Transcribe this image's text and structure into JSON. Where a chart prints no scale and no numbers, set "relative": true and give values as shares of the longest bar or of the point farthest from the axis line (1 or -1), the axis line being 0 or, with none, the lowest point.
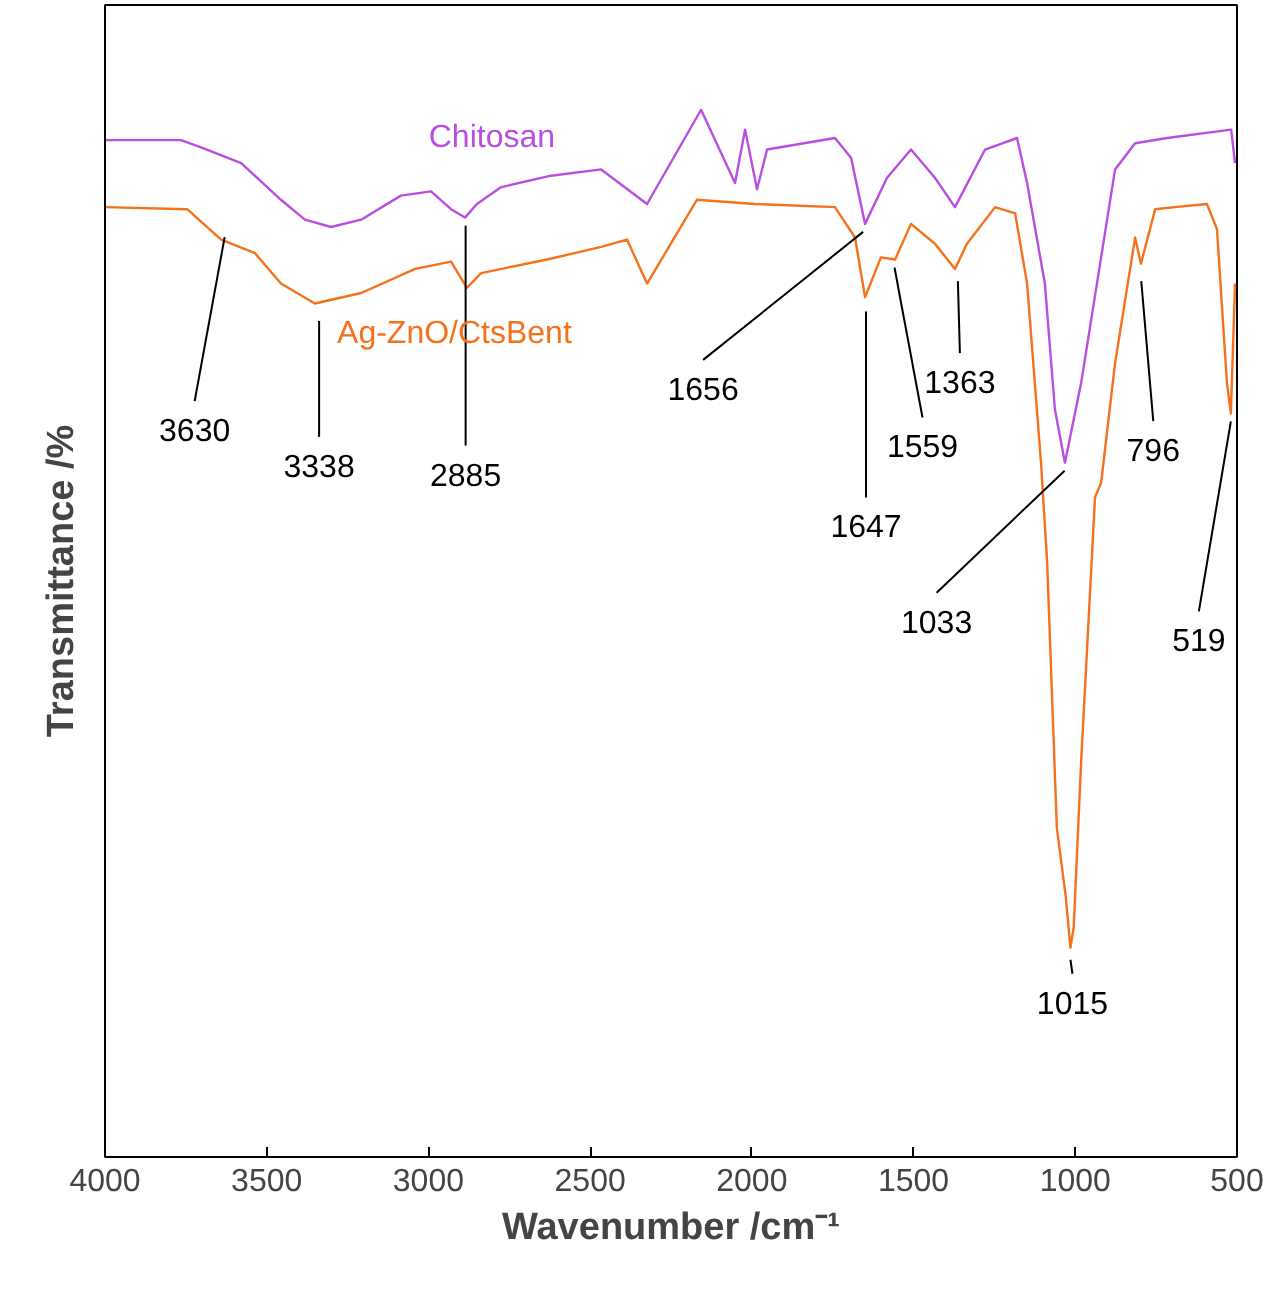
{
  "chart_data": {
    "type": "line",
    "relative": true,
    "xlabel": "Wavenumber /cm⁻¹",
    "ylabel": "Transmittance /%",
    "xlim": [
      4000,
      500
    ],
    "xticks": [
      4000,
      3500,
      3000,
      2500,
      2000,
      1500,
      1000,
      500
    ],
    "grid": false,
    "marker": "none",
    "line_style": "solid",
    "series": [
      {
        "name": "Chitosan",
        "color": "#b84fe0",
        "x": [
          4000,
          3765,
          3703,
          3579,
          3456,
          3382,
          3301,
          3208,
          3085,
          2992,
          2930,
          2887,
          2850,
          2776,
          2621,
          2466,
          2324,
          2157,
          2052,
          2021,
          1984,
          1953,
          1743,
          1693,
          1650,
          1582,
          1508,
          1434,
          1372,
          1279,
          1180,
          1149,
          1094,
          1063,
          1032,
          982,
          933,
          877,
          815,
          716,
          518,
          506
        ],
        "values": [
          0.971,
          0.971,
          0.964,
          0.949,
          0.914,
          0.895,
          0.888,
          0.895,
          0.918,
          0.922,
          0.905,
          0.897,
          0.91,
          0.926,
          0.937,
          0.943,
          0.91,
          1.0,
          0.93,
          0.981,
          0.924,
          0.962,
          0.973,
          0.954,
          0.891,
          0.935,
          0.962,
          0.935,
          0.907,
          0.962,
          0.973,
          0.93,
          0.834,
          0.714,
          0.663,
          0.739,
          0.834,
          0.943,
          0.968,
          0.973,
          0.981,
          0.949
        ]
      },
      {
        "name": "Ag-ZnO/CtsBent",
        "color": "#f5711c",
        "x": [
          4000,
          3746,
          3641,
          3536,
          3456,
          3351,
          3208,
          3041,
          2930,
          2881,
          2837,
          2633,
          2466,
          2386,
          2324,
          2170,
          1990,
          1743,
          1681,
          1650,
          1601,
          1557,
          1508,
          1434,
          1372,
          1335,
          1248,
          1186,
          1149,
          1106,
          1087,
          1057,
          1030,
          1015,
          1005,
          982,
          939,
          920,
          877,
          815,
          797,
          753,
          692,
          593,
          562,
          531,
          519,
          506
        ],
        "values": [
          0.907,
          0.905,
          0.876,
          0.863,
          0.834,
          0.815,
          0.825,
          0.848,
          0.855,
          0.83,
          0.844,
          0.857,
          0.869,
          0.876,
          0.834,
          0.914,
          0.91,
          0.907,
          0.878,
          0.821,
          0.859,
          0.857,
          0.891,
          0.872,
          0.848,
          0.872,
          0.907,
          0.901,
          0.834,
          0.663,
          0.568,
          0.314,
          0.25,
          0.2,
          0.219,
          0.377,
          0.63,
          0.644,
          0.758,
          0.878,
          0.853,
          0.905,
          0.907,
          0.91,
          0.886,
          0.739,
          0.71,
          0.834
        ]
      }
    ],
    "annotations": [
      {
        "text": "3630",
        "x": 3630,
        "y": 0.886
      },
      {
        "text": "3338",
        "x": 3338,
        "y": 0.806
      },
      {
        "text": "2885",
        "x": 2885,
        "y": 0.897
      },
      {
        "text": "1656",
        "x": 1656,
        "y": 0.891
      },
      {
        "text": "1647",
        "x": 1647,
        "y": 0.815
      },
      {
        "text": "1559",
        "x": 1559,
        "y": 0.857
      },
      {
        "text": "1363",
        "x": 1363,
        "y": 0.844
      },
      {
        "text": "1033",
        "x": 1033,
        "y": 0.663
      },
      {
        "text": "796",
        "x": 796,
        "y": 0.844
      },
      {
        "text": "519",
        "x": 519,
        "y": 0.71
      },
      {
        "text": "1015",
        "x": 1015,
        "y": 0.196
      }
    ]
  }
}
